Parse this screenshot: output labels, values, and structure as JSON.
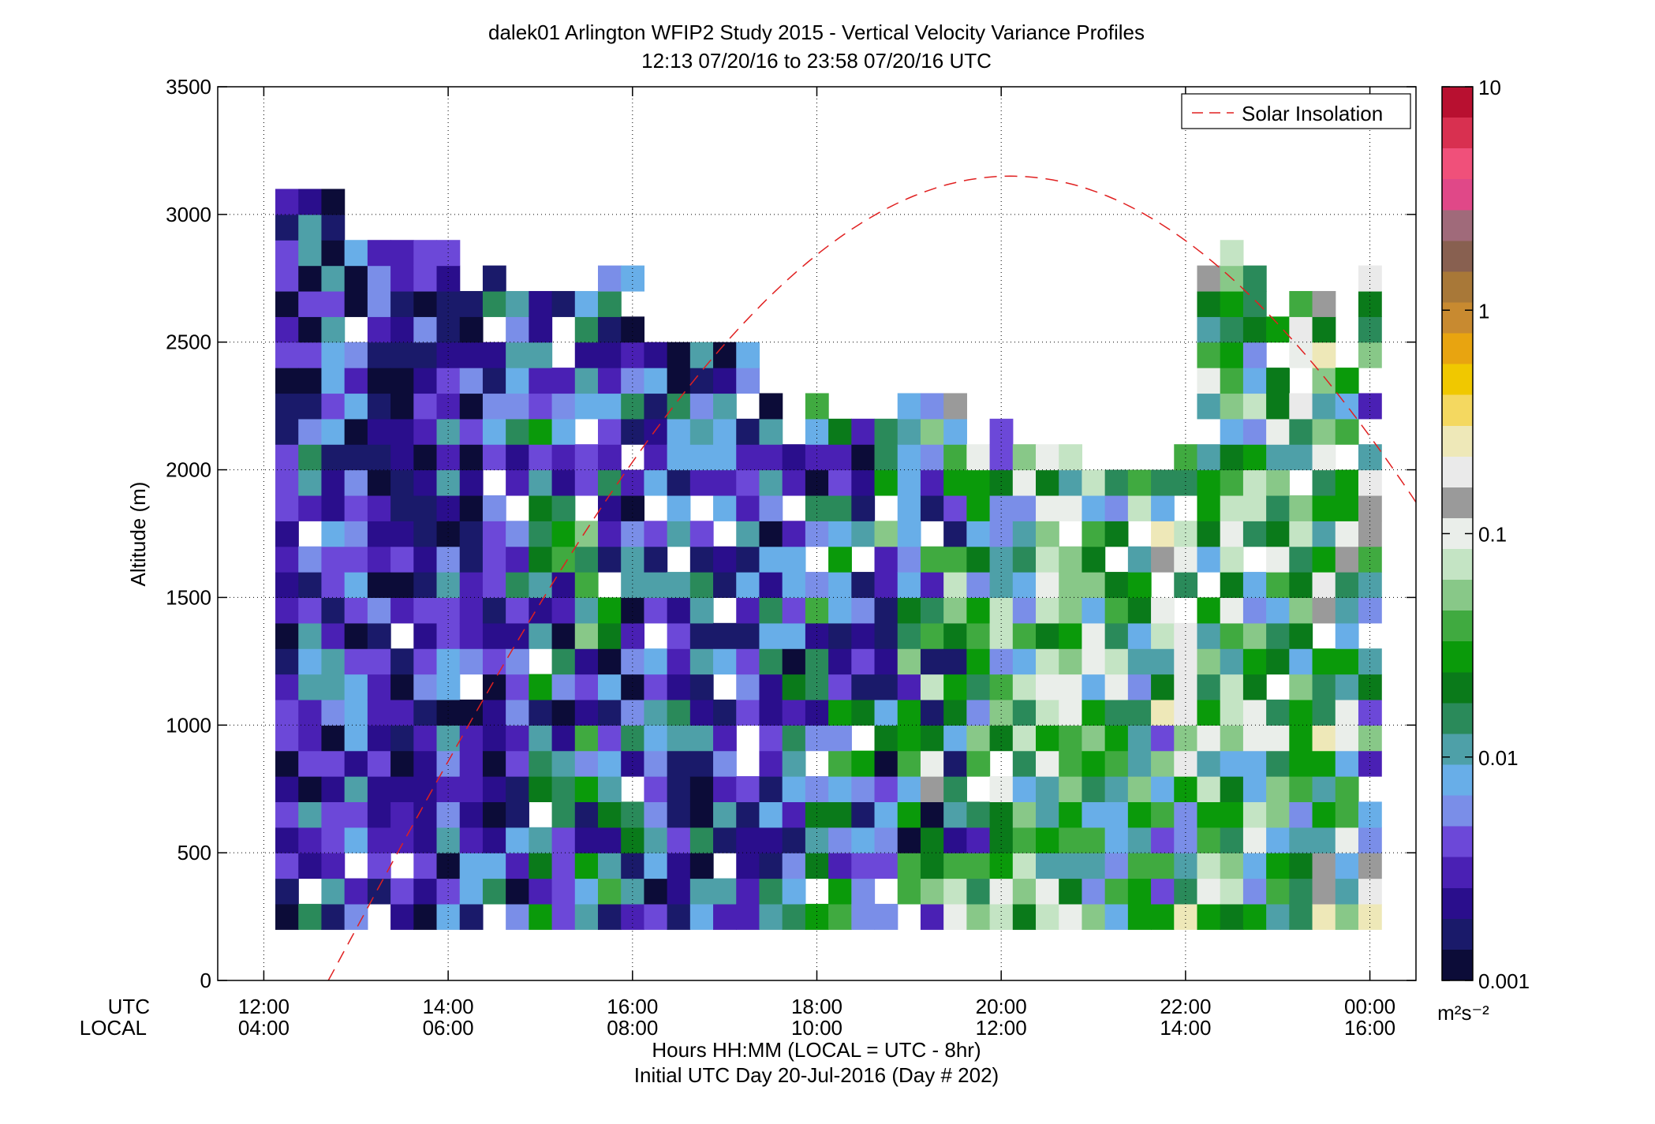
{
  "chart_data": {
    "type": "heatmap",
    "title": "dalek01 Arlington WFIP2 Study 2015 - Vertical Velocity Variance Profiles",
    "subtitle": "12:13 07/20/16 to 23:58 07/20/16  UTC",
    "ylabel": "Altitude (m)",
    "xlabel_lines": [
      "Hours HH:MM  (LOCAL = UTC - 8hr)",
      "Initial UTC Day 20-Jul-2016 (Day # 202)"
    ],
    "x_row_labels": {
      "utc": "UTC",
      "local": "LOCAL"
    },
    "x_unit": "hours UTC",
    "xlim": [
      11.5,
      24.5
    ],
    "ylim": [
      0,
      3500
    ],
    "x_ticks": [
      {
        "h": 12,
        "utc": "12:00",
        "local": "04:00"
      },
      {
        "h": 14,
        "utc": "14:00",
        "local": "06:00"
      },
      {
        "h": 16,
        "utc": "16:00",
        "local": "08:00"
      },
      {
        "h": 18,
        "utc": "18:00",
        "local": "10:00"
      },
      {
        "h": 20,
        "utc": "20:00",
        "local": "12:00"
      },
      {
        "h": 22,
        "utc": "22:00",
        "local": "14:00"
      },
      {
        "h": 24,
        "utc": "00:00",
        "local": "16:00"
      }
    ],
    "y_ticks": [
      0,
      500,
      1000,
      1500,
      2000,
      2500,
      3000,
      3500
    ],
    "grid": true,
    "time_start_h": 12.25,
    "time_step_h": 0.25,
    "alt_start_m": 200,
    "alt_step_m": 100,
    "variance_cells": [
      {
        "h": 12.25,
        "top": 3100,
        "lo": 0.0011,
        "hi": 0.005
      },
      {
        "h": 12.5,
        "top": 3100,
        "lo": 0.0011,
        "hi": 0.015
      },
      {
        "h": 12.75,
        "top": 3100,
        "lo": 0.0011,
        "hi": 0.012
      },
      {
        "h": 13.0,
        "top": 2900,
        "lo": 0.0011,
        "hi": 0.01
      },
      {
        "h": 13.25,
        "top": 2900,
        "lo": 0.0011,
        "hi": 0.008
      },
      {
        "h": 13.5,
        "top": 2900,
        "lo": 0.0011,
        "hi": 0.005
      },
      {
        "h": 13.75,
        "top": 2900,
        "lo": 0.0011,
        "hi": 0.006
      },
      {
        "h": 14.0,
        "top": 2900,
        "lo": 0.0011,
        "hi": 0.012
      },
      {
        "h": 14.25,
        "top": 2800,
        "lo": 0.0011,
        "hi": 0.008
      },
      {
        "h": 14.5,
        "top": 2800,
        "lo": 0.0011,
        "hi": 0.015
      },
      {
        "h": 14.75,
        "top": 2700,
        "lo": 0.0011,
        "hi": 0.02
      },
      {
        "h": 15.0,
        "top": 2700,
        "lo": 0.0011,
        "hi": 0.03
      },
      {
        "h": 15.25,
        "top": 2700,
        "lo": 0.0011,
        "hi": 0.04
      },
      {
        "h": 15.5,
        "top": 2700,
        "lo": 0.0011,
        "hi": 0.05
      },
      {
        "h": 15.75,
        "top": 2800,
        "lo": 0.0011,
        "hi": 0.04
      },
      {
        "h": 16.0,
        "top": 2800,
        "lo": 0.0011,
        "hi": 0.02
      },
      {
        "h": 16.25,
        "top": 2700,
        "lo": 0.0011,
        "hi": 0.015
      },
      {
        "h": 16.5,
        "top": 2500,
        "lo": 0.0011,
        "hi": 0.02
      },
      {
        "h": 16.75,
        "top": 2500,
        "lo": 0.0011,
        "hi": 0.015
      },
      {
        "h": 17.0,
        "top": 2500,
        "lo": 0.0011,
        "hi": 0.012
      },
      {
        "h": 17.25,
        "top": 2500,
        "lo": 0.0011,
        "hi": 0.012
      },
      {
        "h": 17.5,
        "top": 2300,
        "lo": 0.0011,
        "hi": 0.015
      },
      {
        "h": 17.75,
        "top": 2200,
        "lo": 0.0011,
        "hi": 0.02
      },
      {
        "h": 18.0,
        "top": 2300,
        "lo": 0.0011,
        "hi": 0.04
      },
      {
        "h": 18.25,
        "top": 2200,
        "lo": 0.0011,
        "hi": 0.05
      },
      {
        "h": 18.5,
        "top": 2200,
        "lo": 0.0011,
        "hi": 0.04
      },
      {
        "h": 18.75,
        "top": 2200,
        "lo": 0.0011,
        "hi": 0.05
      },
      {
        "h": 19.0,
        "top": 2300,
        "lo": 0.0011,
        "hi": 0.06
      },
      {
        "h": 19.25,
        "top": 2300,
        "lo": 0.0011,
        "hi": 0.2
      },
      {
        "h": 19.5,
        "top": 2300,
        "lo": 0.0015,
        "hi": 0.15
      },
      {
        "h": 19.75,
        "top": 2100,
        "lo": 0.002,
        "hi": 0.12
      },
      {
        "h": 20.0,
        "top": 2200,
        "lo": 0.004,
        "hi": 0.1
      },
      {
        "h": 20.25,
        "top": 2100,
        "lo": 0.006,
        "hi": 0.1
      },
      {
        "h": 20.5,
        "top": 2100,
        "lo": 0.008,
        "hi": 0.12
      },
      {
        "h": 20.75,
        "top": 2100,
        "lo": 0.008,
        "hi": 0.12
      },
      {
        "h": 21.0,
        "top": 2000,
        "lo": 0.006,
        "hi": 0.1
      },
      {
        "h": 21.25,
        "top": 2000,
        "lo": 0.005,
        "hi": 0.12
      },
      {
        "h": 21.5,
        "top": 2000,
        "lo": 0.004,
        "hi": 0.12
      },
      {
        "h": 21.75,
        "top": 2000,
        "lo": 0.004,
        "hi": 0.25
      },
      {
        "h": 22.0,
        "top": 2100,
        "lo": 0.004,
        "hi": 0.25
      },
      {
        "h": 22.25,
        "top": 2800,
        "lo": 0.005,
        "hi": 0.15
      },
      {
        "h": 22.5,
        "top": 2900,
        "lo": 0.006,
        "hi": 0.12
      },
      {
        "h": 22.75,
        "top": 2800,
        "lo": 0.006,
        "hi": 0.12
      },
      {
        "h": 23.0,
        "top": 2600,
        "lo": 0.006,
        "hi": 0.12
      },
      {
        "h": 23.25,
        "top": 2700,
        "lo": 0.005,
        "hi": 0.2
      },
      {
        "h": 23.5,
        "top": 2700,
        "lo": 0.01,
        "hi": 0.3
      },
      {
        "h": 23.75,
        "top": 2400,
        "lo": 0.006,
        "hi": 0.15
      },
      {
        "h": 24.0,
        "top": 2800,
        "lo": 0.002,
        "hi": 0.25
      }
    ],
    "colorbar": {
      "scale": "log",
      "min": 0.001,
      "max": 10,
      "ticks": [
        "10",
        "1",
        "0.1",
        "0.01",
        "0.001"
      ],
      "unit": "m²s⁻²",
      "colors": [
        "#0c0c38",
        "#1a1a6a",
        "#2a0e8c",
        "#4a20b4",
        "#6c48d8",
        "#7a8ee8",
        "#68aee8",
        "#4ea0a8",
        "#2a8a5a",
        "#0a7a1a",
        "#0a9a0a",
        "#40aa40",
        "#88c888",
        "#c4e4c4",
        "#eaeeea",
        "#9a9a9a",
        "#eaeaea",
        "#eee8b8",
        "#f4d860",
        "#f0c800",
        "#e8a410",
        "#c88a30",
        "#a87838",
        "#886050",
        "#a06a7a",
        "#e04888",
        "#f0507a",
        "#d83050",
        "#b81030"
      ]
    },
    "legend": {
      "label": "Solar Insolation",
      "position": "top-right",
      "color": "#e02020"
    },
    "solar_curve": {
      "rise_h": 12.7,
      "set_h": 24.5,
      "peak_h": 20.1,
      "peak_m": 3150
    }
  }
}
